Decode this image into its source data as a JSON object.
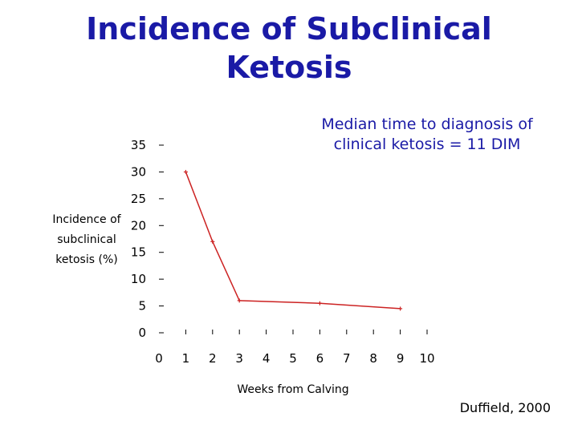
{
  "slide": {
    "title_line1": "Incidence of Subclinical",
    "title_line2": "Ketosis",
    "annotation_line1": "Median time to diagnosis of",
    "annotation_line2": "clinical ketosis = 11 DIM",
    "source": "Duffield, 2000"
  },
  "chart_data": {
    "type": "line",
    "xlabel": "Weeks from Calving",
    "ylabel_lines": [
      "Incidence of",
      "subclinical",
      "ketosis (%)"
    ],
    "x_ticks": [
      0,
      1,
      2,
      3,
      4,
      5,
      6,
      7,
      8,
      9,
      10
    ],
    "y_ticks": [
      0,
      5,
      10,
      15,
      20,
      25,
      30,
      35
    ],
    "xlim": [
      0,
      10
    ],
    "ylim": [
      0,
      35
    ],
    "grid": false,
    "series": [
      {
        "color": "#cc2222",
        "x": [
          1,
          2,
          3,
          6,
          9
        ],
        "y": [
          30,
          17,
          6,
          5.5,
          4.5
        ]
      }
    ]
  }
}
